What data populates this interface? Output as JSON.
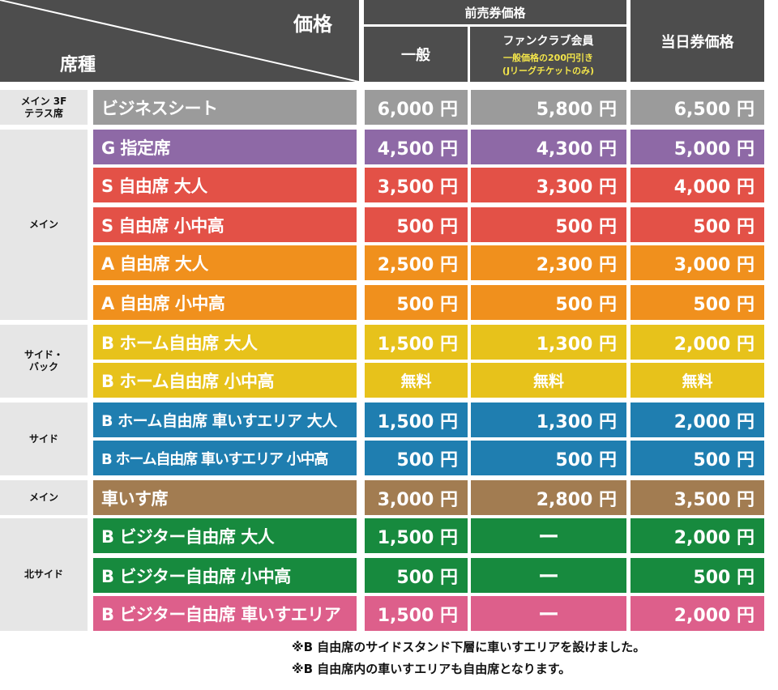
{
  "header": {
    "price": "価格",
    "seat_type": "席種",
    "advance": "前売券価格",
    "general": "一般",
    "fanclub": "ファンクラブ会員",
    "fanclub_note1": "一般価格の200円引き",
    "fanclub_note2": "(Jリーグチケットのみ)",
    "dayof": "当日券価格"
  },
  "colors": {
    "header": "#4d4d4d",
    "group": "#e6e6e6",
    "gray": "#9b9b9b",
    "purple": "#8e69a6",
    "red": "#e35147",
    "orange": "#f0901d",
    "yellow": "#e7c21b",
    "blue": "#1f7eb0",
    "brown": "#a27c51",
    "green": "#178a3e",
    "pink": "#dd5f8b",
    "note_yellow": "#f3e54a"
  },
  "groups": [
    {
      "label": "メイン 3F\nテラス席",
      "span": [
        0,
        0
      ]
    },
    {
      "label": "メイン",
      "span": [
        1,
        5
      ]
    },
    {
      "label": "サイド・\nバック",
      "span": [
        6,
        7
      ]
    },
    {
      "label": "サイド",
      "span": [
        8,
        9
      ]
    },
    {
      "label": "メイン",
      "span": [
        10,
        10
      ]
    },
    {
      "label": "北サイド",
      "span": [
        11,
        13
      ]
    }
  ],
  "rows": [
    {
      "seat": "ビジネスシート",
      "general": "6,000 円",
      "fanclub": "5,800 円",
      "dayof": "6,500 円",
      "color": "gray"
    },
    {
      "seat": "G 指定席",
      "general": "4,500 円",
      "fanclub": "4,300 円",
      "dayof": "5,000 円",
      "color": "purple"
    },
    {
      "seat": "S 自由席 大人",
      "general": "3,500 円",
      "fanclub": "3,300 円",
      "dayof": "4,000 円",
      "color": "red"
    },
    {
      "seat": "S 自由席 小中高",
      "general": "500 円",
      "fanclub": "500 円",
      "dayof": "500 円",
      "color": "red"
    },
    {
      "seat": "A 自由席 大人",
      "general": "2,500 円",
      "fanclub": "2,300 円",
      "dayof": "3,000 円",
      "color": "orange"
    },
    {
      "seat": "A 自由席 小中高",
      "general": "500 円",
      "fanclub": "500 円",
      "dayof": "500 円",
      "color": "orange"
    },
    {
      "seat": "B ホーム自由席 大人",
      "general": "1,500 円",
      "fanclub": "1,300 円",
      "dayof": "2,000 円",
      "color": "yellow"
    },
    {
      "seat": "B ホーム自由席 小中高",
      "general": "無料",
      "fanclub": "無料",
      "dayof": "無料",
      "color": "yellow"
    },
    {
      "seat": "B ホーム自由席 車いすエリア 大人",
      "general": "1,500 円",
      "fanclub": "1,300 円",
      "dayof": "2,000 円",
      "color": "blue"
    },
    {
      "seat": "B ホーム自由席 車いすエリア 小中高",
      "general": "500 円",
      "fanclub": "500 円",
      "dayof": "500 円",
      "color": "blue"
    },
    {
      "seat": "車いす席",
      "general": "3,000 円",
      "fanclub": "2,800 円",
      "dayof": "3,500 円",
      "color": "brown"
    },
    {
      "seat": "B ビジター自由席 大人",
      "general": "1,500 円",
      "fanclub": "ー",
      "dayof": "2,000 円",
      "color": "green"
    },
    {
      "seat": "B ビジター自由席 小中高",
      "general": "500 円",
      "fanclub": "ー",
      "dayof": "500 円",
      "color": "green"
    },
    {
      "seat": "B ビジター自由席 車いすエリア",
      "general": "1,500 円",
      "fanclub": "ー",
      "dayof": "2,000 円",
      "color": "pink"
    }
  ],
  "notes": [
    "※B 自由席のサイドスタンド下層に車いすエリアを設けました。",
    "※B 自由席内の車いすエリアも自由席となります。"
  ]
}
